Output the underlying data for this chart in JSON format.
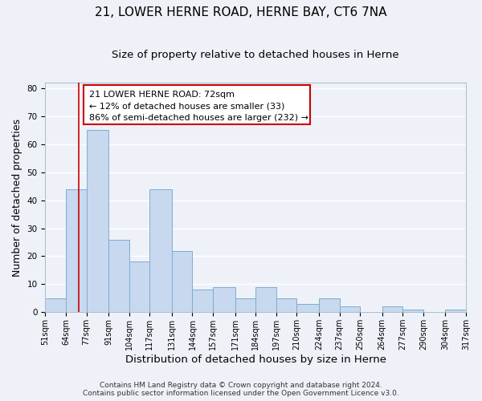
{
  "title": "21, LOWER HERNE ROAD, HERNE BAY, CT6 7NA",
  "subtitle": "Size of property relative to detached houses in Herne",
  "xlabel": "Distribution of detached houses by size in Herne",
  "ylabel": "Number of detached properties",
  "bin_edges": [
    51,
    64,
    77,
    91,
    104,
    117,
    131,
    144,
    157,
    171,
    184,
    197,
    210,
    224,
    237,
    250,
    264,
    277,
    290,
    304,
    317
  ],
  "bar_heights": [
    5,
    44,
    65,
    26,
    18,
    44,
    22,
    8,
    9,
    5,
    9,
    5,
    3,
    5,
    2,
    0,
    2,
    1,
    0,
    1
  ],
  "bar_color": "#c8d8ee",
  "bar_edge_color": "#7aaed4",
  "vline_x": 72,
  "vline_color": "#cc0000",
  "annotation_lines": [
    "21 LOWER HERNE ROAD: 72sqm",
    "← 12% of detached houses are smaller (33)",
    "86% of semi-detached houses are larger (232) →"
  ],
  "footer_line1": "Contains HM Land Registry data © Crown copyright and database right 2024.",
  "footer_line2": "Contains public sector information licensed under the Open Government Licence v3.0.",
  "ylim": [
    0,
    82
  ],
  "yticks": [
    0,
    10,
    20,
    30,
    40,
    50,
    60,
    70,
    80
  ],
  "tick_labels": [
    "51sqm",
    "64sqm",
    "77sqm",
    "91sqm",
    "104sqm",
    "117sqm",
    "131sqm",
    "144sqm",
    "157sqm",
    "171sqm",
    "184sqm",
    "197sqm",
    "210sqm",
    "224sqm",
    "237sqm",
    "250sqm",
    "264sqm",
    "277sqm",
    "290sqm",
    "304sqm",
    "317sqm"
  ],
  "background_color": "#eef2f8",
  "grid_color": "#ffffff",
  "title_fontsize": 11,
  "subtitle_fontsize": 9.5,
  "xlabel_fontsize": 9.5,
  "ylabel_fontsize": 9,
  "tick_fontsize": 7,
  "annot_fontsize": 8,
  "footer_fontsize": 6.5
}
